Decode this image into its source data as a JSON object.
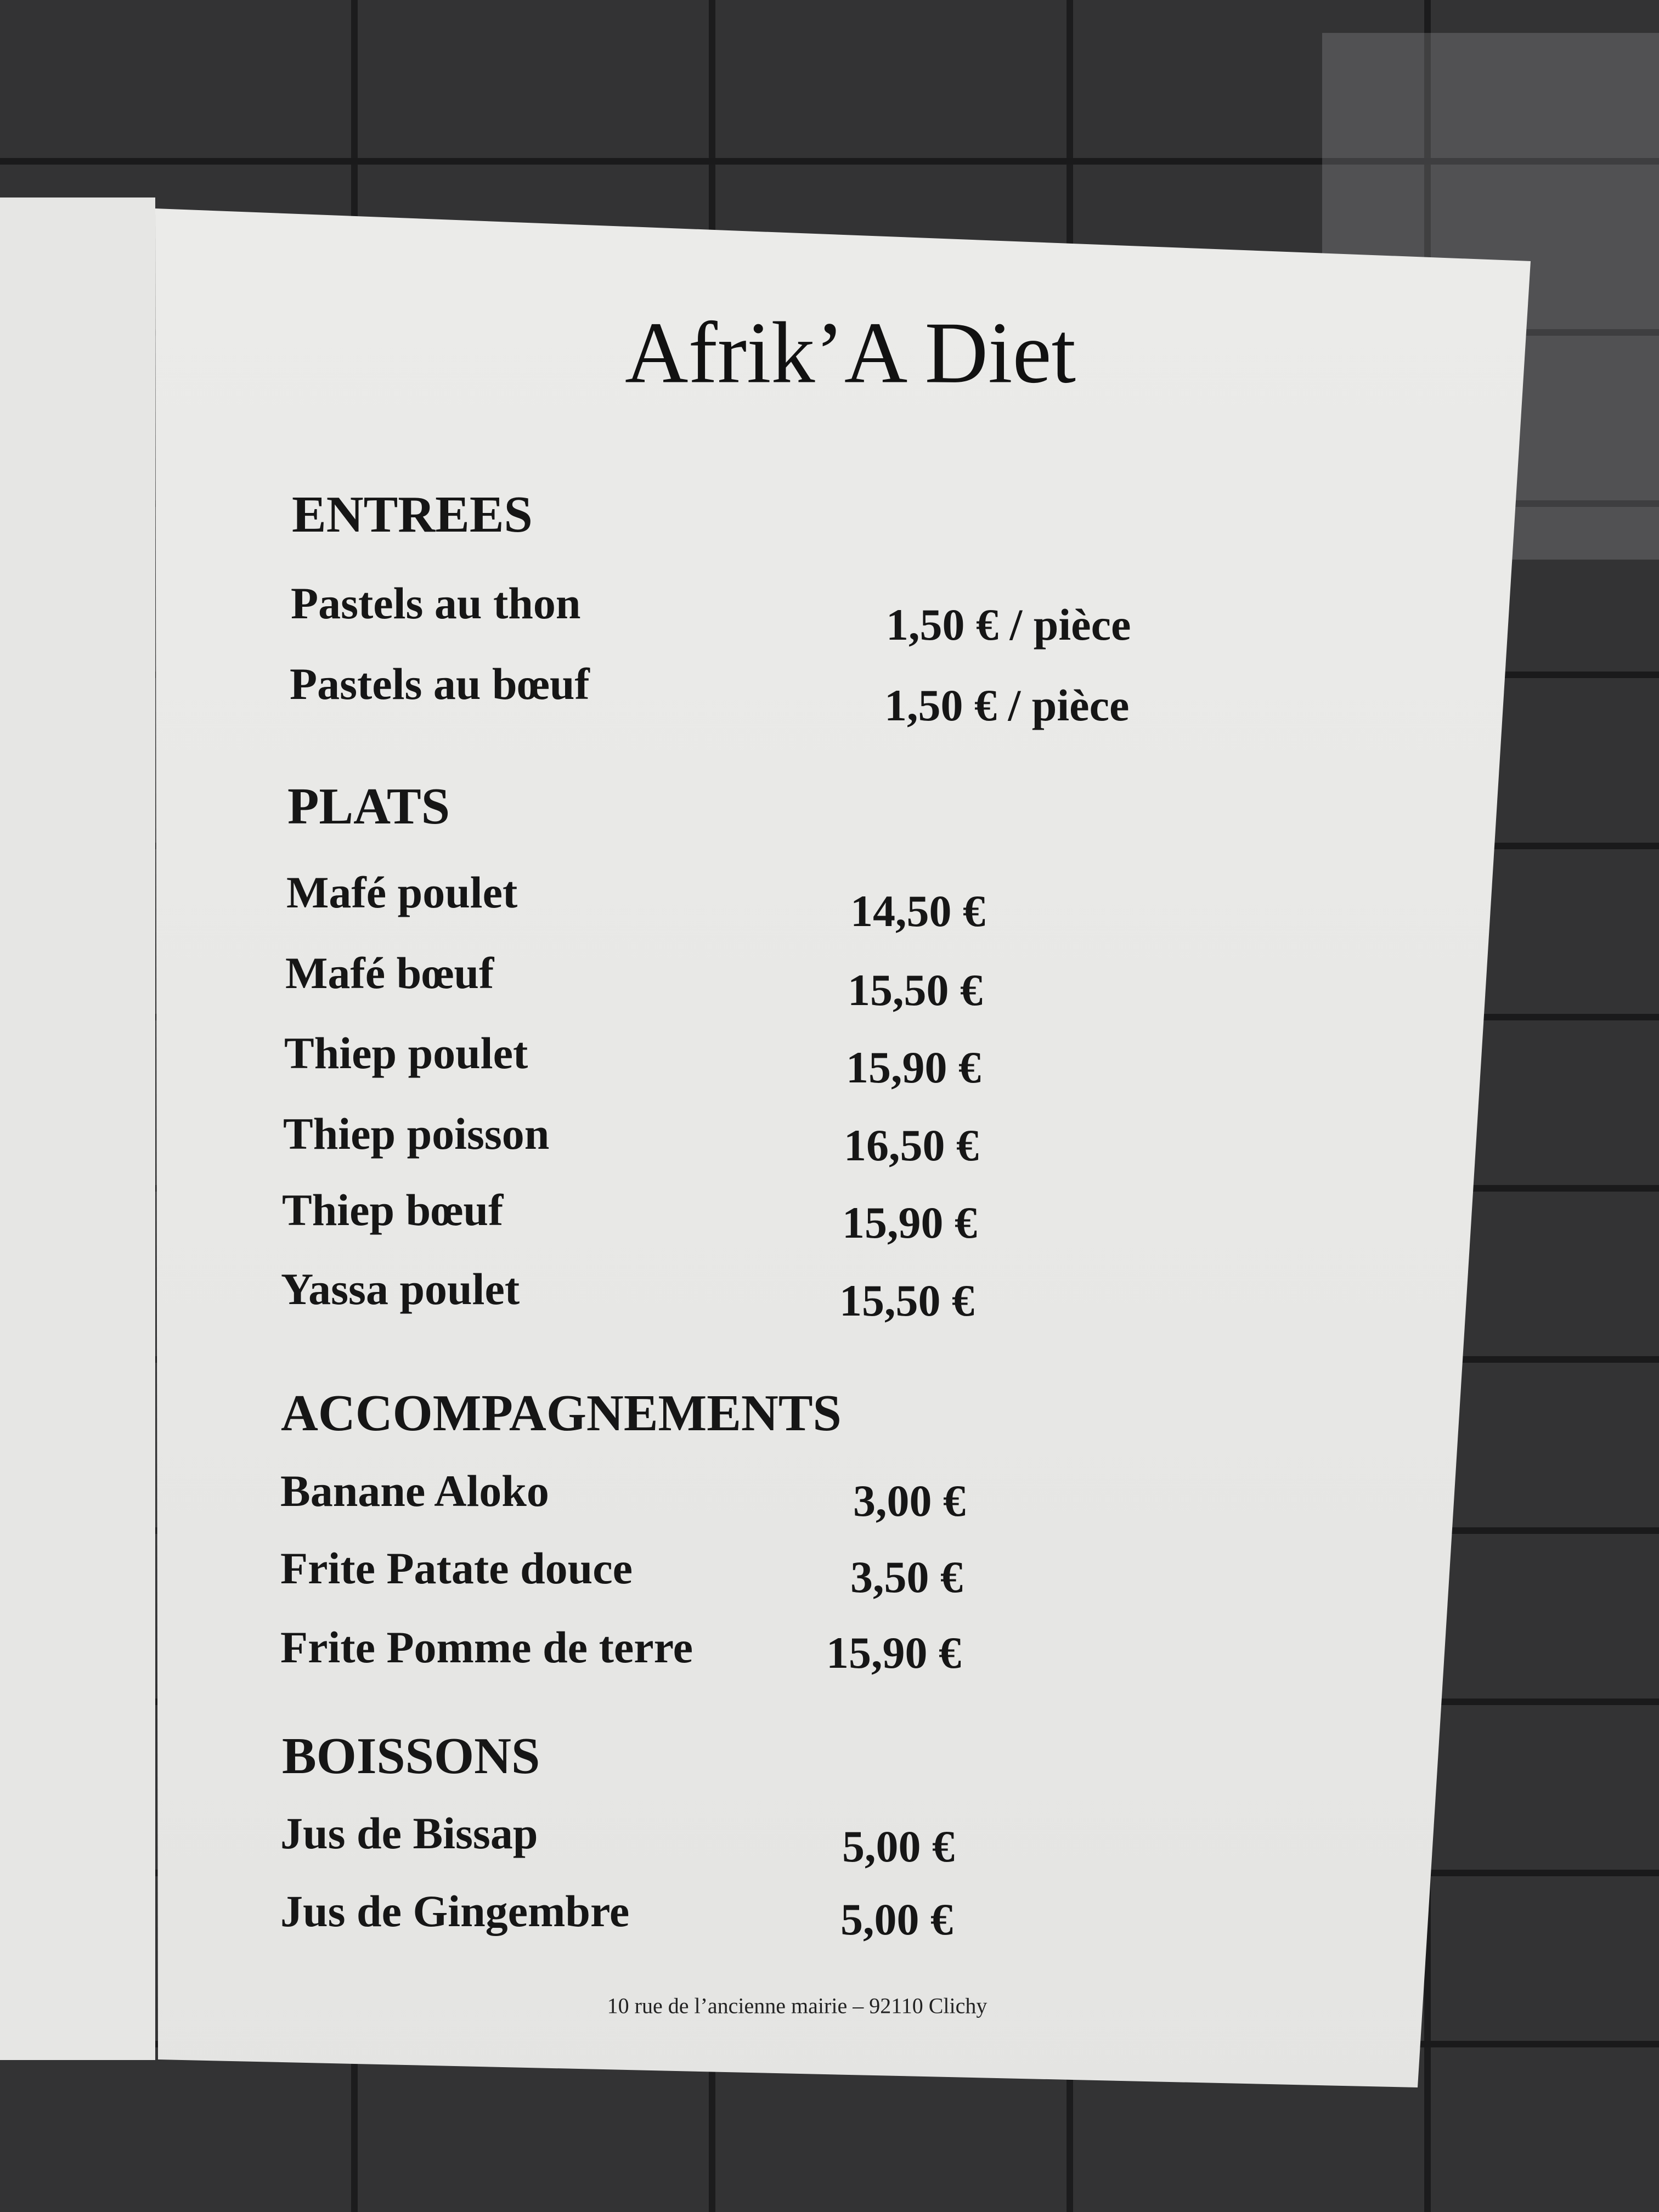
{
  "title": "Afrik’A Diet",
  "sections": [
    {
      "heading": "ENTREES",
      "items": [
        {
          "name": "Pastels au thon",
          "price": "1,50 € / pièce"
        },
        {
          "name": "Pastels au bœuf",
          "price": "1,50 € / pièce"
        }
      ]
    },
    {
      "heading": "PLATS",
      "items": [
        {
          "name": "Mafé poulet",
          "price": "14,50 €"
        },
        {
          "name": "Mafé bœuf",
          "price": "15,50 €"
        },
        {
          "name": "Thiep poulet",
          "price": "15,90 €"
        },
        {
          "name": "Thiep poisson",
          "price": "16,50 €"
        },
        {
          "name": "Thiep bœuf",
          "price": "15,90 €"
        },
        {
          "name": "Yassa poulet",
          "price": "15,50 €"
        }
      ]
    },
    {
      "heading": "ACCOMPAGNEMENTS",
      "items": [
        {
          "name": "Banane Aloko",
          "price": "3,00 €"
        },
        {
          "name": "Frite Patate douce",
          "price": "3,50 €"
        },
        {
          "name": "Frite Pomme de terre",
          "price": "15,90 €"
        }
      ]
    },
    {
      "heading": "BOISSONS",
      "items": [
        {
          "name": "Jus de Bissap",
          "price": "5,00 €"
        },
        {
          "name": "Jus de Gingembre",
          "price": "5,00 €"
        }
      ]
    }
  ],
  "footer": "10 rue de l’ancienne mairie – 92110 Clichy"
}
